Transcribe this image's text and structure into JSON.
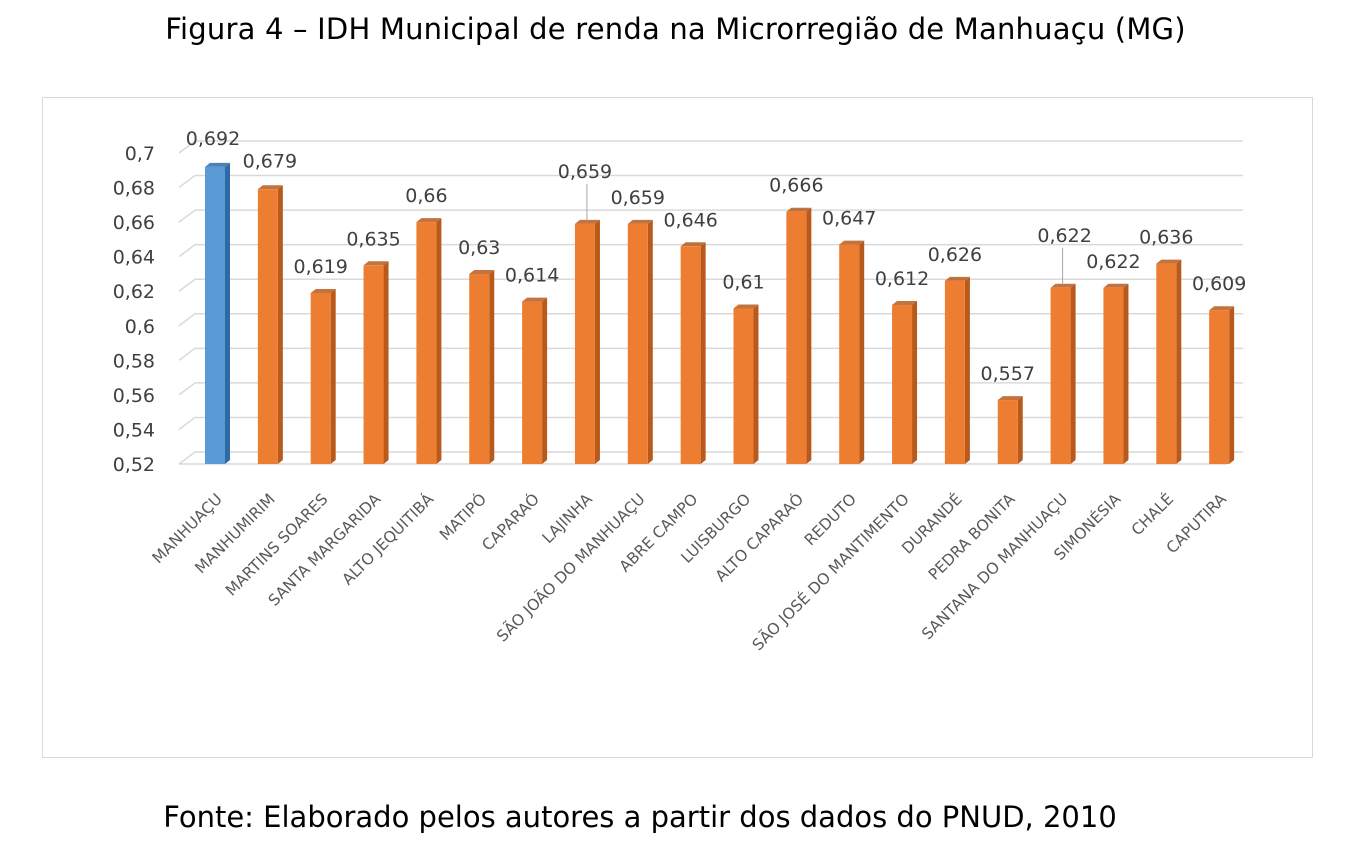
{
  "figure": {
    "title": "Figura 4 – IDH Municipal de renda na Microrregião de Manhuaçu (MG)",
    "source": "Fonte: Elaborado pelos autores a partir dos dados do PNUD, 2010"
  },
  "colors": {
    "highlight": "#5b9bd5",
    "highlight_side": "#2e6aa8",
    "bar": "#ed7d31",
    "bar_side": "#b85a1b",
    "gridline": "#d9d9d9",
    "text": "#404040"
  },
  "chart_data": {
    "type": "bar",
    "style": "3d-column",
    "title": "",
    "xlabel": "",
    "ylabel": "",
    "ylim": [
      0.52,
      0.7
    ],
    "yticks": [
      0.52,
      0.54,
      0.56,
      0.58,
      0.6,
      0.62,
      0.64,
      0.66,
      0.68,
      0.7
    ],
    "ytick_labels": [
      "0,52",
      "0,54",
      "0,56",
      "0,58",
      "0,6",
      "0,62",
      "0,64",
      "0,66",
      "0,68",
      "0,7"
    ],
    "grid": true,
    "legend": "none",
    "categories": [
      "MANHUAÇU",
      "MANHUMIRIM",
      "MARTINS SOARES",
      "SANTA MARGARIDA",
      "ALTO JEQUITIBÁ",
      "MATIPÓ",
      "CAPARAÓ",
      "LAJINHA",
      "SÃO JOÃO DO MANHUAÇU",
      "ABRE CAMPO",
      "LUISBURGO",
      "ALTO CAPARAÓ",
      "REDUTO",
      "SÃO JOSÉ DO MANTIMENTO",
      "DURANDÉ",
      "PEDRA BONITA",
      "SANTANA DO MANHUAÇU",
      "SIMONÉSIA",
      "CHALÉ",
      "CAPUTIRA"
    ],
    "values": [
      0.692,
      0.679,
      0.619,
      0.635,
      0.66,
      0.63,
      0.614,
      0.659,
      0.659,
      0.646,
      0.61,
      0.666,
      0.647,
      0.612,
      0.626,
      0.557,
      0.622,
      0.622,
      0.636,
      0.609
    ],
    "data_labels": [
      "0,692",
      "0,679",
      "0,619",
      "0,635",
      "0,66",
      "0,63",
      "0,614",
      "0,659",
      "0,659",
      "0,646",
      "0,61",
      "0,666",
      "0,647",
      "0,612",
      "0,626",
      "0,557",
      "0,622",
      "0,622",
      "0,636",
      "0,609"
    ],
    "highlighted_category": "MANHUAÇU"
  }
}
